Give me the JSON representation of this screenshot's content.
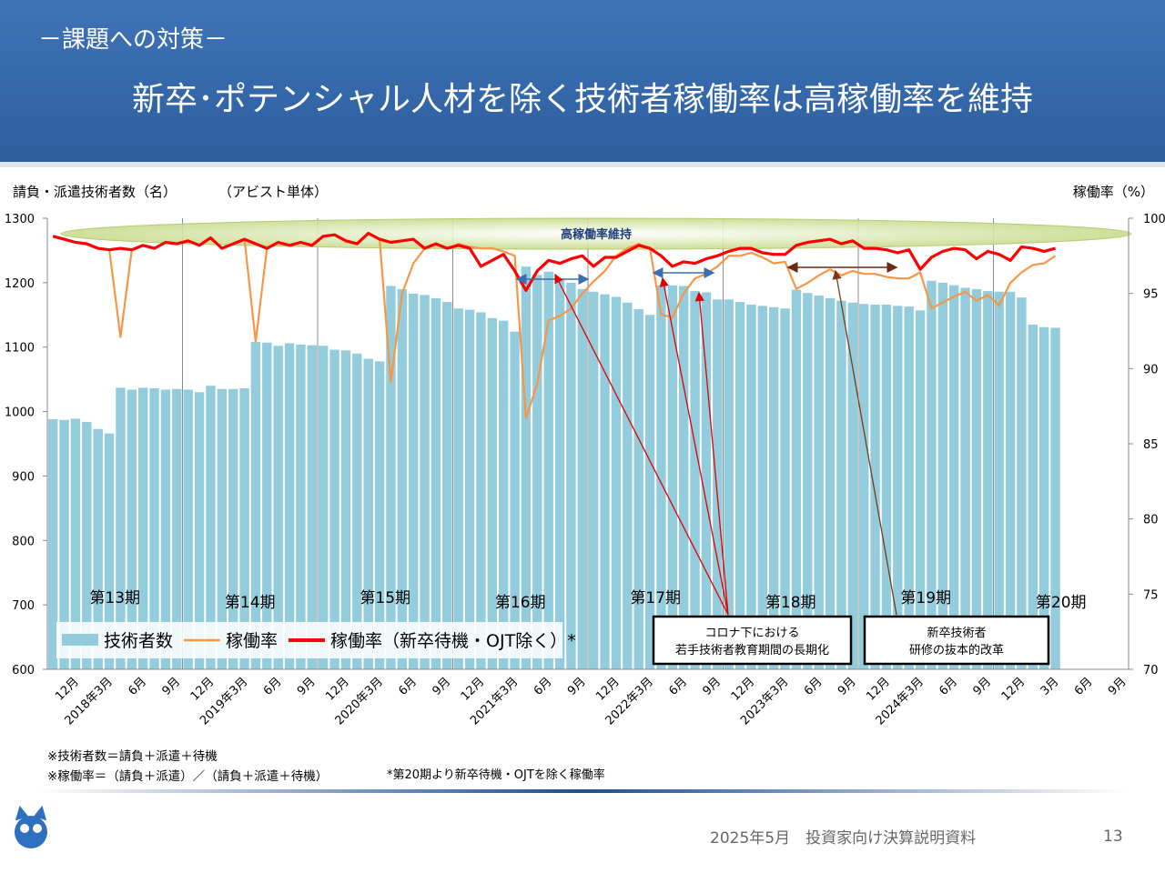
{
  "header": {
    "section": "－課題への対策－",
    "title": "新卒･ポテンシャル人材を除く技術者稼働率は高稼働率を維持"
  },
  "chart_data": {
    "type": "combo",
    "y_label": "請負・派遣技術者数（名）",
    "subtitle": "（アビスト単体）",
    "y2_label": "稼働率（%）",
    "categories": [
      null,
      null,
      "12月",
      null,
      null,
      "2018年3月",
      null,
      null,
      "6月",
      null,
      null,
      "9月",
      null,
      null,
      "12月",
      null,
      null,
      "2019年3月",
      null,
      null,
      "6月",
      null,
      null,
      "9月",
      null,
      null,
      "12月",
      null,
      null,
      "2020年3月",
      null,
      null,
      "6月",
      null,
      null,
      "9月",
      null,
      null,
      "12月",
      null,
      null,
      "2021年3月",
      null,
      null,
      "6月",
      null,
      null,
      "9月",
      null,
      null,
      "12月",
      null,
      null,
      "2022年3月",
      null,
      null,
      "6月",
      null,
      null,
      "9月",
      null,
      null,
      "12月",
      null,
      null,
      "2023年3月",
      null,
      null,
      "6月",
      null,
      null,
      "9月",
      null,
      null,
      "12月",
      null,
      null,
      "2024年3月",
      null,
      null,
      "6月",
      null,
      null,
      "9月",
      null,
      null,
      "12月",
      null,
      null,
      "3月",
      null,
      null,
      "6月",
      null,
      null,
      "9月"
    ],
    "ylim": [
      600,
      1300
    ],
    "yticks": [
      600,
      700,
      800,
      900,
      1000,
      1100,
      1200,
      1300
    ],
    "y2lim": [
      70,
      100
    ],
    "y2ticks": [
      70,
      75,
      80,
      85,
      90,
      95,
      100
    ],
    "series": [
      {
        "name": "技術者数",
        "type": "bar",
        "color": "#93cddd",
        "values": [
          988,
          987,
          989,
          984,
          973,
          966,
          1037,
          1034,
          1037,
          1036,
          1034,
          1035,
          1034,
          1030,
          1040,
          1035,
          1035,
          1036,
          1108,
          1107,
          1102,
          1106,
          1104,
          1103,
          1102,
          1096,
          1095,
          1090,
          1082,
          1078,
          1195,
          1190,
          1183,
          1181,
          1176,
          1170,
          1160,
          1158,
          1154,
          1145,
          1141,
          1124,
          1225,
          1212,
          1217,
          1205,
          1200,
          1190,
          1186,
          1182,
          1178,
          1169,
          1159,
          1150,
          1196,
          1196,
          1195,
          1187,
          1185,
          1174,
          1174,
          1170,
          1166,
          1164,
          1162,
          1160,
          1189,
          1184,
          1180,
          1176,
          1172,
          1169,
          1167,
          1166,
          1166,
          1164,
          1163,
          1157,
          1203,
          1200,
          1196,
          1192,
          1190,
          1187,
          1186,
          1186,
          1177,
          1135,
          1131,
          1130,
          null,
          null,
          null,
          null,
          null,
          null
        ]
      },
      {
        "name": "稼働率",
        "type": "line",
        "axis": "y2",
        "color": "#f79646",
        "values": [
          98.8,
          98.6,
          98.4,
          98.3,
          98.0,
          97.9,
          92.1,
          97.9,
          98.2,
          98.0,
          98.4,
          98.3,
          98.5,
          98.2,
          98.7,
          98.0,
          98.3,
          98.6,
          91.8,
          98.0,
          98.4,
          98.2,
          98.4,
          98.2,
          98.8,
          98.9,
          98.5,
          98.3,
          99.0,
          98.6,
          89.1,
          95.0,
          97.0,
          98.0,
          98.3,
          98.0,
          98.3,
          98.1,
          98.0,
          98.0,
          97.8,
          97.5,
          86.7,
          89.0,
          93.2,
          93.5,
          94.0,
          95.0,
          95.8,
          96.5,
          97.5,
          98.0,
          98.3,
          98.0,
          93.6,
          93.4,
          95.0,
          96.0,
          96.3,
          96.8,
          97.5,
          97.5,
          97.7,
          97.4,
          97.0,
          97.1,
          95.3,
          95.7,
          96.2,
          96.6,
          96.2,
          96.5,
          96.3,
          96.3,
          96.1,
          96.0,
          96.0,
          96.4,
          94.0,
          94.4,
          94.8,
          95.1,
          94.5,
          94.9,
          94.2,
          95.7,
          96.4,
          96.9,
          97.0,
          97.5,
          null,
          null,
          null,
          null,
          null,
          null
        ]
      },
      {
        "name": "稼働率（新卒待機・OJT除く）*",
        "type": "line",
        "axis": "y2",
        "color": "#ff0000",
        "values": [
          98.8,
          98.6,
          98.4,
          98.3,
          98.0,
          97.9,
          98.0,
          97.9,
          98.2,
          98.0,
          98.4,
          98.3,
          98.5,
          98.2,
          98.7,
          98.0,
          98.3,
          98.6,
          98.3,
          98.0,
          98.4,
          98.2,
          98.4,
          98.2,
          98.8,
          98.9,
          98.5,
          98.3,
          99.0,
          98.6,
          98.4,
          98.5,
          98.6,
          98.0,
          98.3,
          98.0,
          98.2,
          98.0,
          96.8,
          97.2,
          97.6,
          96.5,
          95.2,
          96.5,
          97.2,
          97.0,
          97.3,
          97.5,
          96.8,
          97.4,
          97.4,
          97.8,
          98.2,
          98.0,
          97.5,
          96.8,
          97.1,
          97.0,
          97.3,
          97.5,
          97.8,
          98.0,
          98.0,
          97.7,
          97.6,
          97.6,
          98.2,
          98.4,
          98.5,
          98.6,
          98.3,
          98.5,
          98.0,
          98.0,
          97.9,
          97.7,
          97.9,
          96.6,
          97.4,
          97.8,
          98.0,
          97.9,
          97.3,
          97.8,
          97.6,
          97.2,
          98.1,
          98.0,
          97.8,
          98.0,
          null,
          null,
          null,
          null,
          null,
          null
        ]
      }
    ],
    "period_labels": [
      "第13期",
      "第14期",
      "第15期",
      "第16期",
      "第17期",
      "第18期",
      "第19期",
      "第20期"
    ],
    "highlight": "高稼働率維持",
    "callouts": [
      [
        "コロナ下における",
        "若手技術者教育期間の長期化"
      ],
      [
        "新卒技術者",
        "研修の抜本的改革"
      ]
    ],
    "notes": [
      "※技術者数＝請負＋派遣＋待機",
      "※稼働率＝（請負＋派遣）／（請負＋派遣＋待機）",
      "*第20期より新卒待機・OJTを除く稼働率"
    ]
  },
  "footer": {
    "text": "2025年5月　投資家向け決算説明資料",
    "page": "13"
  }
}
